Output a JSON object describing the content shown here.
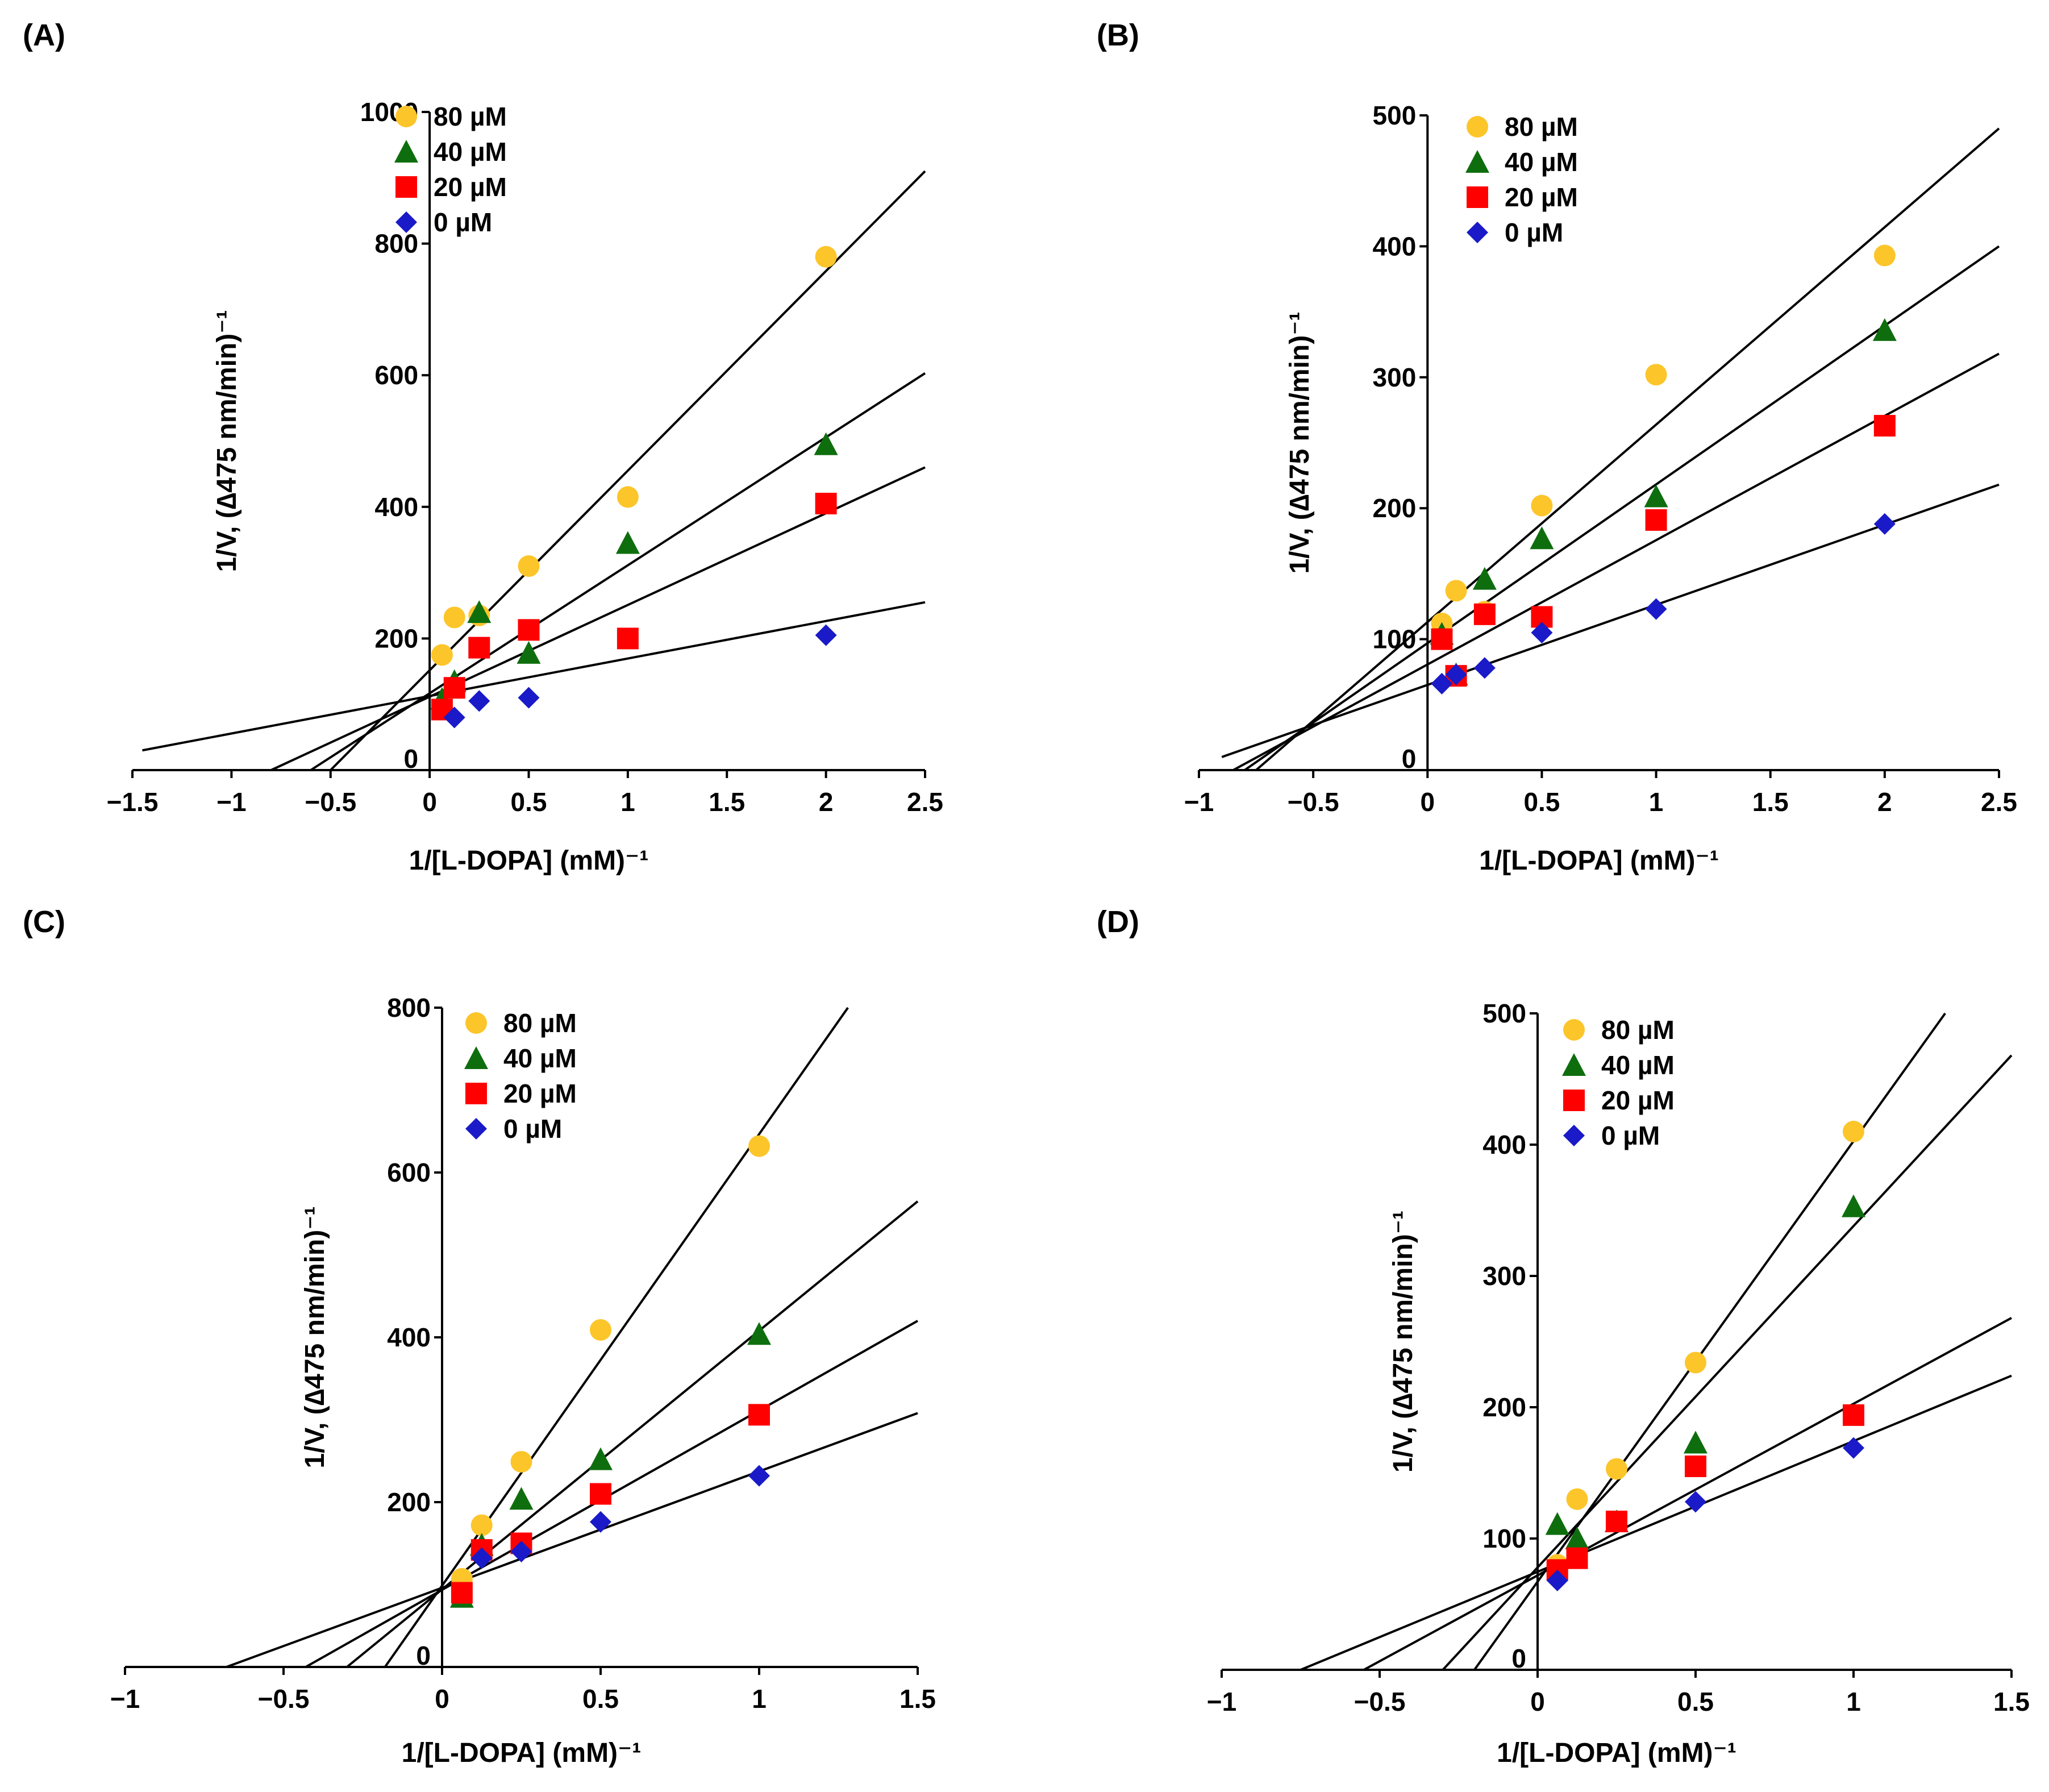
{
  "colors": {
    "s80": "#fcc52a",
    "s40": "#0e6e0e",
    "s20": "#ff0000",
    "s0": "#1a1ac8",
    "line": "#000000"
  },
  "chart_data": [
    {
      "panel": "(A)",
      "type": "scatter",
      "title": "",
      "xlabel": "1/[L-DOPA] (mM)⁻¹",
      "ylabel": "1/V, (∆475 nm/min)⁻¹",
      "xlim": [
        -1.5,
        2.5
      ],
      "ylim": [
        0,
        1000
      ],
      "xticks": [
        -1.5,
        -1,
        -0.5,
        0,
        0.5,
        1,
        1.5,
        2,
        2.5
      ],
      "xtick_labels": [
        "−1.5",
        "−1",
        "−0.5",
        "0",
        "0.5",
        "1",
        "1.5",
        "2",
        "2.5"
      ],
      "yticks": [
        0,
        200,
        400,
        600,
        800,
        1000
      ],
      "ytick_labels": [
        "0",
        "200",
        "400",
        "600",
        "800",
        "1000"
      ],
      "legend_position": "top-left",
      "series": [
        {
          "name": "80 µM",
          "color_key": "s80",
          "marker": "circle",
          "x": [
            0.0625,
            0.125,
            0.25,
            0.5,
            1,
            2
          ],
          "y": [
            175,
            232,
            235,
            310,
            415,
            780
          ],
          "fit": {
            "x0": -0.5,
            "y0": 0,
            "x1": 2.5,
            "y1": 910
          }
        },
        {
          "name": "40 µM",
          "color_key": "s40",
          "marker": "triangle",
          "x": [
            0.0625,
            0.125,
            0.25,
            0.5,
            1,
            2
          ],
          "y": [
            108,
            135,
            240,
            178,
            345,
            495
          ],
          "fit": {
            "x0": -0.6,
            "y0": 0,
            "x1": 2.5,
            "y1": 603
          }
        },
        {
          "name": "20 µM",
          "color_key": "s20",
          "marker": "square",
          "x": [
            0.0625,
            0.125,
            0.25,
            0.5,
            1,
            2
          ],
          "y": [
            92,
            125,
            186,
            213,
            200,
            405
          ],
          "fit": {
            "x0": -0.8,
            "y0": 0,
            "x1": 2.5,
            "y1": 460
          }
        },
        {
          "name": "0 µM",
          "color_key": "s0",
          "marker": "diamond",
          "x": [
            0.125,
            0.25,
            0.5,
            2
          ],
          "y": [
            80,
            105,
            110,
            205
          ],
          "fit": {
            "x0": -1.45,
            "y0": 30,
            "x1": 2.5,
            "y1": 255
          }
        }
      ]
    },
    {
      "panel": "(B)",
      "type": "scatter",
      "title": "",
      "xlabel": "1/[L-DOPA] (mM)⁻¹",
      "ylabel": "1/V, (∆475 nm/min)⁻¹",
      "xlim": [
        -1,
        2.5
      ],
      "ylim": [
        0,
        500
      ],
      "xticks": [
        -1,
        -0.5,
        0,
        0.5,
        1,
        1.5,
        2,
        2.5
      ],
      "xtick_labels": [
        "−1",
        "−0.5",
        "0",
        "0.5",
        "1",
        "1.5",
        "2",
        "2.5"
      ],
      "yticks": [
        0,
        100,
        200,
        300,
        400,
        500
      ],
      "ytick_labels": [
        "0",
        "100",
        "200",
        "300",
        "400",
        "500"
      ],
      "legend_position": "top-left",
      "series": [
        {
          "name": "80 µM",
          "color_key": "s80",
          "marker": "circle",
          "x": [
            0.0625,
            0.125,
            0.25,
            0.5,
            1,
            2
          ],
          "y": [
            112,
            137,
            121,
            202,
            302,
            393
          ],
          "fit": {
            "x0": -0.75,
            "y0": 0,
            "x1": 2.5,
            "y1": 490
          }
        },
        {
          "name": "40 µM",
          "color_key": "s40",
          "marker": "triangle",
          "x": [
            0.0625,
            0.125,
            0.25,
            0.5,
            1,
            2
          ],
          "y": [
            104,
            73,
            146,
            177,
            209,
            336
          ],
          "fit": {
            "x0": -0.8,
            "y0": 0,
            "x1": 2.5,
            "y1": 400
          }
        },
        {
          "name": "20 µM",
          "color_key": "s20",
          "marker": "square",
          "x": [
            0.0625,
            0.125,
            0.25,
            0.5,
            1,
            2
          ],
          "y": [
            100,
            72,
            119,
            117,
            191,
            263
          ],
          "fit": {
            "x0": -0.85,
            "y0": 0,
            "x1": 2.5,
            "y1": 318
          }
        },
        {
          "name": "0 µM",
          "color_key": "s0",
          "marker": "diamond",
          "x": [
            0.0625,
            0.125,
            0.25,
            0.5,
            1,
            2
          ],
          "y": [
            66,
            73,
            78,
            105,
            123,
            188
          ],
          "fit": {
            "x0": -0.9,
            "y0": 10,
            "x1": 2.5,
            "y1": 218
          }
        }
      ]
    },
    {
      "panel": "(C)",
      "type": "scatter",
      "title": "",
      "xlabel": "1/[L-DOPA] (mM)⁻¹",
      "ylabel": "1/V, (∆475 nm/min)⁻¹",
      "xlim": [
        -1,
        1.5
      ],
      "ylim": [
        0,
        800
      ],
      "xticks": [
        -1,
        -0.5,
        0,
        0.5,
        1,
        1.5
      ],
      "xtick_labels": [
        "−1",
        "−0.5",
        "0",
        "0.5",
        "1",
        "1.5"
      ],
      "yticks": [
        0,
        200,
        400,
        600,
        800
      ],
      "ytick_labels": [
        "0",
        "200",
        "400",
        "600",
        "800"
      ],
      "legend_position": "top-left",
      "series": [
        {
          "name": "80 µM",
          "color_key": "s80",
          "marker": "circle",
          "x": [
            0.0625,
            0.125,
            0.25,
            0.5,
            1
          ],
          "y": [
            107,
            172,
            249,
            409,
            632
          ],
          "fit": {
            "x0": -0.18,
            "y0": 0,
            "x1": 1.28,
            "y1": 800
          }
        },
        {
          "name": "40 µM",
          "color_key": "s40",
          "marker": "triangle",
          "x": [
            0.0625,
            0.125,
            0.25,
            0.5,
            1
          ],
          "y": [
            85,
            148,
            204,
            252,
            404
          ],
          "fit": {
            "x0": -0.3,
            "y0": 0,
            "x1": 1.5,
            "y1": 565
          }
        },
        {
          "name": "20 µM",
          "color_key": "s20",
          "marker": "square",
          "x": [
            0.0625,
            0.125,
            0.25,
            0.5,
            1
          ],
          "y": [
            90,
            142,
            150,
            210,
            306
          ],
          "fit": {
            "x0": -0.43,
            "y0": 0,
            "x1": 1.5,
            "y1": 420
          }
        },
        {
          "name": "0 µM",
          "color_key": "s0",
          "marker": "diamond",
          "x": [
            0.125,
            0.25,
            0.5,
            1
          ],
          "y": [
            132,
            140,
            176,
            232
          ],
          "fit": {
            "x0": -0.68,
            "y0": 0,
            "x1": 1.5,
            "y1": 308
          }
        }
      ]
    },
    {
      "panel": "(D)",
      "type": "scatter",
      "title": "",
      "xlabel": "1/[L-DOPA] (mM)⁻¹",
      "ylabel": "1/V, (∆475 nm/min)⁻¹",
      "xlim": [
        -1,
        1.5
      ],
      "ylim": [
        0,
        500
      ],
      "xticks": [
        -1,
        -0.5,
        0,
        0.5,
        1,
        1.5
      ],
      "xtick_labels": [
        "−1",
        "−0.5",
        "0",
        "0.5",
        "1",
        "1.5"
      ],
      "yticks": [
        0,
        100,
        200,
        300,
        400,
        500
      ],
      "ytick_labels": [
        "0",
        "100",
        "200",
        "300",
        "400",
        "500"
      ],
      "legend_position": "top-left",
      "series": [
        {
          "name": "80 µM",
          "color_key": "s80",
          "marker": "circle",
          "x": [
            0.0625,
            0.125,
            0.25,
            0.5,
            1
          ],
          "y": [
            80,
            130,
            153,
            234,
            410
          ],
          "fit": {
            "x0": -0.2,
            "y0": 0,
            "x1": 1.29,
            "y1": 500
          }
        },
        {
          "name": "40 µM",
          "color_key": "s40",
          "marker": "triangle",
          "x": [
            0.0625,
            0.125,
            0.25,
            0.5,
            1
          ],
          "y": [
            111,
            100,
            113,
            173,
            353
          ],
          "fit": {
            "x0": -0.3,
            "y0": 0,
            "x1": 1.5,
            "y1": 468
          }
        },
        {
          "name": "20 µM",
          "color_key": "s20",
          "marker": "square",
          "x": [
            0.0625,
            0.125,
            0.25,
            0.5,
            1
          ],
          "y": [
            76,
            85,
            113,
            155,
            194
          ],
          "fit": {
            "x0": -0.55,
            "y0": 0,
            "x1": 1.5,
            "y1": 268
          }
        },
        {
          "name": "0 µM",
          "color_key": "s0",
          "marker": "diamond",
          "x": [
            0.0625,
            0.5,
            1
          ],
          "y": [
            68,
            128,
            169
          ],
          "fit": {
            "x0": -0.75,
            "y0": 0,
            "x1": 1.5,
            "y1": 224
          }
        }
      ]
    }
  ]
}
